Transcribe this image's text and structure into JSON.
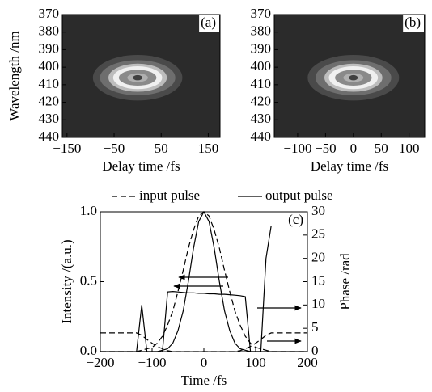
{
  "chart_data": [
    {
      "type": "contour",
      "label": "(a)",
      "xlabel": "Delay time /fs",
      "ylabel": "Wavelength /nm",
      "xlim": [
        -160,
        175
      ],
      "ylim": [
        440,
        370
      ],
      "xticks": [
        {
          "value": -150,
          "label": "−150"
        },
        {
          "value": -50,
          "label": "−50"
        },
        50,
        150
      ],
      "yticks": [
        370,
        380,
        390,
        400,
        410,
        420,
        430,
        440
      ],
      "background": "#2b2b2b",
      "center": {
        "x": 0,
        "y": 406
      },
      "levels": [
        {
          "rx": 95,
          "ry": 13,
          "color": "#4a4a4a"
        },
        {
          "rx": 80,
          "ry": 10,
          "color": "#6e6e6e"
        },
        {
          "rx": 62,
          "ry": 8,
          "color": "#bdbdbd"
        },
        {
          "rx": 52,
          "ry": 6.5,
          "color": "#f0f0f0"
        },
        {
          "rx": 40,
          "ry": 4.5,
          "color": "#8a8a8a"
        },
        {
          "rx": 22,
          "ry": 2.5,
          "color": "#b0b0b0"
        },
        {
          "rx": 10,
          "ry": 1.5,
          "color": "#404040"
        }
      ]
    },
    {
      "type": "contour",
      "label": "(b)",
      "xlabel": "Delay time /fs",
      "xlim": [
        -142,
        128
      ],
      "ylim": [
        440,
        370
      ],
      "xticks": [
        {
          "value": -100,
          "label": "−100"
        },
        {
          "value": -50,
          "label": "−50"
        },
        0,
        50,
        100
      ],
      "yticks": [
        370,
        380,
        390,
        400,
        410,
        420,
        430,
        440
      ],
      "background": "#2b2b2b",
      "center": {
        "x": 0,
        "y": 406
      },
      "levels": [
        {
          "rx": 82,
          "ry": 13,
          "color": "#4a4a4a"
        },
        {
          "rx": 68,
          "ry": 10,
          "color": "#6e6e6e"
        },
        {
          "rx": 52,
          "ry": 8,
          "color": "#bdbdbd"
        },
        {
          "rx": 44,
          "ry": 6.5,
          "color": "#f0f0f0"
        },
        {
          "rx": 33,
          "ry": 4.5,
          "color": "#8a8a8a"
        },
        {
          "rx": 18,
          "ry": 2.5,
          "color": "#b0b0b0"
        },
        {
          "rx": 8,
          "ry": 1.5,
          "color": "#404040"
        }
      ]
    },
    {
      "type": "line",
      "label": "(c)",
      "xlabel": "Time /fs",
      "ylabel": "Intensity /(a.u.)",
      "y2label": "Phase /rad",
      "xlim": [
        -200,
        200
      ],
      "ylim": [
        0,
        1
      ],
      "y2lim": [
        0,
        30
      ],
      "xticks": [
        {
          "value": -200,
          "label": "−200"
        },
        {
          "value": -100,
          "label": "−100"
        },
        0,
        100,
        200
      ],
      "yticks": [
        {
          "value": 0,
          "label": "0.0"
        },
        {
          "value": 0.5,
          "label": "0.5"
        },
        {
          "value": 1,
          "label": "1.0"
        }
      ],
      "y2ticks": [
        0,
        5,
        10,
        15,
        20,
        25,
        30
      ],
      "x": [
        -200,
        -190,
        -180,
        -170,
        -160,
        -150,
        -140,
        -130,
        -120,
        -110,
        -100,
        -90,
        -80,
        -70,
        -60,
        -50,
        -40,
        -30,
        -20,
        -10,
        0,
        10,
        20,
        30,
        40,
        50,
        60,
        70,
        80,
        90,
        100,
        110,
        120,
        130,
        140,
        150,
        160,
        170,
        180,
        190,
        200
      ],
      "series": [
        {
          "name": "input pulse",
          "color": "#000000",
          "linestyle": "dashed",
          "values": [
            0,
            0,
            0,
            0,
            0,
            0,
            0,
            0,
            0.01,
            0.02,
            0.03,
            0.06,
            0.11,
            0.19,
            0.29,
            0.43,
            0.58,
            0.74,
            0.87,
            0.97,
            1,
            0.97,
            0.87,
            0.74,
            0.58,
            0.43,
            0.29,
            0.19,
            0.11,
            0.06,
            0.03,
            0.02,
            0.01,
            0,
            0,
            0,
            0,
            0,
            0,
            0,
            0
          ],
          "phase": [
            4,
            4,
            4,
            4,
            4,
            4,
            4,
            4,
            3.5,
            2.6,
            1.8,
            1.1,
            0.6,
            0.2,
            0,
            0,
            0,
            0,
            0,
            0,
            0,
            0,
            0,
            0,
            0,
            0,
            0,
            0.2,
            0.6,
            1.1,
            1.8,
            2.6,
            3.5,
            4,
            4,
            4,
            4,
            4,
            4,
            4,
            4
          ]
        },
        {
          "name": "output pulse",
          "color": "#000000",
          "linestyle": "solid",
          "values": [
            0,
            0,
            0,
            0,
            0,
            0,
            0,
            0,
            0,
            0,
            0,
            0,
            0.01,
            0.02,
            0.06,
            0.15,
            0.29,
            0.5,
            0.74,
            0.93,
            1,
            0.93,
            0.74,
            0.5,
            0.29,
            0.15,
            0.06,
            0.02,
            0.01,
            0,
            0,
            0,
            0,
            0,
            0,
            0,
            0,
            0,
            0,
            0,
            0
          ],
          "phase": [
            null,
            null,
            null,
            null,
            null,
            null,
            null,
            0,
            10,
            0,
            0,
            0,
            0,
            12.8,
            12.9,
            12.8,
            12.7,
            12.6,
            12.6,
            12.5,
            12.5,
            12.4,
            12.4,
            12.3,
            12.3,
            12.2,
            12.1,
            12,
            11.8,
            0,
            0,
            0,
            20,
            27,
            null,
            null,
            null,
            null,
            null,
            null,
            null
          ]
        }
      ]
    }
  ]
}
